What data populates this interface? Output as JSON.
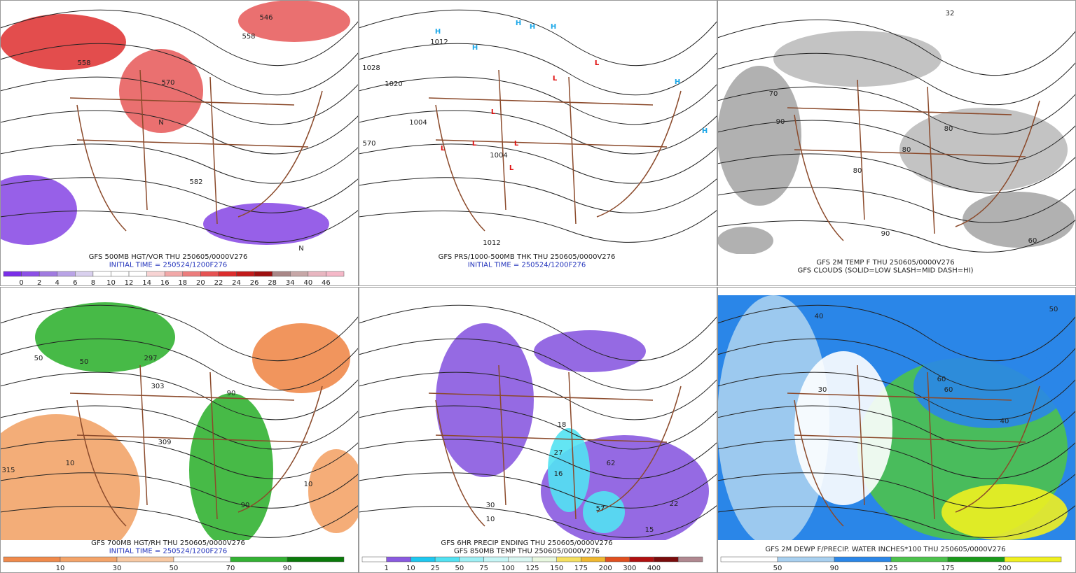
{
  "panels": [
    {
      "captions": [
        "GFS 500MB HGT/VOR THU 250605/0000V276",
        "INITIAL TIME = 250524/1200F276"
      ],
      "map_labels": [
        "546",
        "558",
        "558",
        "570",
        "582",
        "N",
        "N"
      ],
      "colorbar": {
        "colors": [
          "#7a2ee8",
          "#8c4fe6",
          "#a07ae0",
          "#b9a3e6",
          "#d9d0ee",
          "#ffffff",
          "#ffffff",
          "#ffffff",
          "#f7d3d3",
          "#f2a8a8",
          "#ec7c7c",
          "#e65252",
          "#dc2c2c",
          "#c21a1a",
          "#9e1010",
          "#a98787",
          "#c7a7a7",
          "#e8b6c0",
          "#f5b8c8"
        ],
        "labels": [
          "0",
          "2",
          "4",
          "6",
          "8",
          "10",
          "12",
          "14",
          "16",
          "18",
          "20",
          "22",
          "24",
          "26",
          "28",
          "34",
          "40",
          "46"
        ]
      }
    },
    {
      "captions": [
        "GFS PRS/1000-500MB THK THU 250605/0000V276",
        "INITIAL TIME = 250524/1200F276"
      ],
      "map_labels": [
        "H",
        "H",
        "H",
        "H",
        "H",
        "H",
        "H",
        "L",
        "L",
        "L",
        "L",
        "L",
        "L",
        "L",
        "1012",
        "1020",
        "1028",
        "1004",
        "570",
        "1004",
        "1012"
      ]
    },
    {
      "captions": [
        "GFS 2M TEMP F THU 250605/0000V276",
        "GFS CLOUDS (SOLID=LOW SLASH=MID DASH=HI)"
      ],
      "map_labels": [
        "32",
        "70",
        "80",
        "80",
        "90",
        "90",
        "80",
        "60"
      ]
    },
    {
      "captions": [
        "GFS 700MB HGT/RH THU 250605/0000V276",
        "INITIAL TIME = 250524/1200F276"
      ],
      "map_labels": [
        "297",
        "303",
        "309",
        "315",
        "10",
        "50",
        "90",
        "90",
        "10",
        "50"
      ],
      "colorbar": {
        "colors": [
          "#f08a4b",
          "#f4a469",
          "#f8c9a3",
          "#ffffff",
          "#33b233",
          "#0a7a0a"
        ],
        "labels": [
          "10",
          "30",
          "50",
          "70",
          "90"
        ]
      }
    },
    {
      "captions": [
        "GFS 6HR PRECIP ENDING THU 250605/0000V276",
        "GFS 850MB TEMP THU 250605/0000V276"
      ],
      "map_labels": [
        "18",
        "27",
        "16",
        "62",
        "57",
        "15",
        "22",
        "30",
        "10"
      ],
      "colorbar": {
        "colors": [
          "#ffffff",
          "#8a5ae0",
          "#1ec8f0",
          "#52e2f2",
          "#9ef0f5",
          "#c6f6f6",
          "#d9f7f2",
          "#e8f8e0",
          "#f5e060",
          "#f0b830",
          "#e05020",
          "#b01010",
          "#7a0c0c",
          "#b08890"
        ],
        "labels": [
          "1",
          "10",
          "25",
          "50",
          "75",
          "100",
          "125",
          "150",
          "175",
          "200",
          "300",
          "400"
        ]
      }
    },
    {
      "captions": [
        "GFS 2M DEWP F/PRECIP. WATER INCHES*100 THU 250605/0000V276"
      ],
      "map_labels": [
        "50",
        "40",
        "30",
        "60",
        "60",
        "40"
      ],
      "colorbar": {
        "colors": [
          "#ffffff",
          "#a8d0f0",
          "#2a86e8",
          "#4cc24c",
          "#1a9a1a",
          "#f0f020"
        ],
        "labels": [
          "50",
          "90",
          "125",
          "175",
          "200"
        ]
      }
    }
  ]
}
